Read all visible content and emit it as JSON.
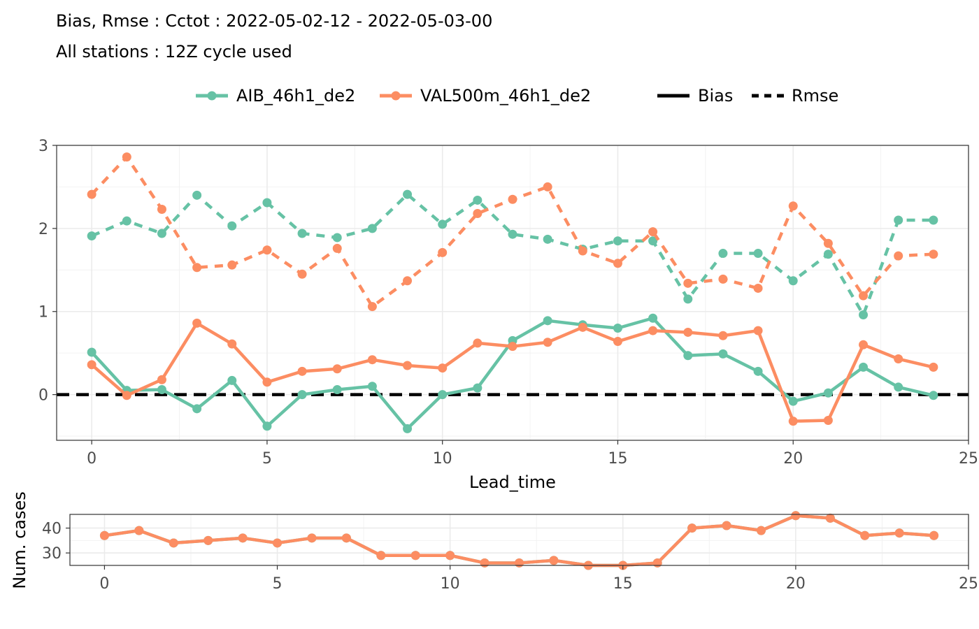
{
  "title": "Bias, Rmse : Cctot : 2022-05-02-12 - 2022-05-03-00",
  "subtitle": "All stations : 12Z cycle used",
  "colors": {
    "AIB_46h1_de2": "#66c2a5",
    "VAL500m_46h1_de2": "#fc8d62",
    "zero_line": "#000000"
  },
  "legend": {
    "placement": "top",
    "models": [
      "AIB_46h1_de2",
      "VAL500m_46h1_de2"
    ],
    "linetypes": [
      "Bias",
      "Rmse"
    ]
  },
  "chart_data": [
    {
      "type": "line",
      "xlabel": "Lead_time",
      "ylabel": "",
      "xlim": [
        -1,
        25
      ],
      "ylim": [
        -0.55,
        3
      ],
      "xticks": [
        0,
        5,
        10,
        15,
        20,
        25
      ],
      "yticks": [
        0,
        1,
        2,
        3
      ],
      "grid": true,
      "x": [
        0,
        1,
        2,
        3,
        4,
        5,
        6,
        7,
        8,
        9,
        10,
        11,
        12,
        13,
        14,
        15,
        16,
        17,
        18,
        19,
        20,
        21,
        22,
        23,
        24
      ],
      "series": [
        {
          "name": "AIB_46h1_de2",
          "metric": "Bias",
          "linetype": "solid",
          "values": [
            0.51,
            0.05,
            0.06,
            -0.17,
            0.17,
            -0.38,
            0.0,
            0.06,
            0.1,
            -0.41,
            0.0,
            0.08,
            0.65,
            0.89,
            0.84,
            0.8,
            0.92,
            0.47,
            0.49,
            0.28,
            -0.08,
            0.02,
            0.33,
            0.09,
            -0.01
          ]
        },
        {
          "name": "VAL500m_46h1_de2",
          "metric": "Bias",
          "linetype": "solid",
          "values": [
            0.36,
            -0.01,
            0.18,
            0.86,
            0.61,
            0.15,
            0.28,
            0.31,
            0.42,
            0.35,
            0.32,
            0.62,
            0.58,
            0.63,
            0.81,
            0.64,
            0.77,
            0.75,
            0.71,
            0.77,
            -0.32,
            -0.31,
            0.6,
            0.43,
            0.33
          ]
        },
        {
          "name": "AIB_46h1_de2",
          "metric": "Rmse",
          "linetype": "dashed",
          "values": [
            1.91,
            2.09,
            1.94,
            2.4,
            2.03,
            2.31,
            1.94,
            1.89,
            2.0,
            2.41,
            2.05,
            2.34,
            1.93,
            1.87,
            1.75,
            1.85,
            1.85,
            1.15,
            1.7,
            1.7,
            1.37,
            1.69,
            0.96,
            2.1,
            2.1
          ]
        },
        {
          "name": "VAL500m_46h1_de2",
          "metric": "Rmse",
          "linetype": "dashed",
          "values": [
            2.41,
            2.86,
            2.23,
            1.53,
            1.56,
            1.74,
            1.45,
            1.76,
            1.06,
            1.37,
            1.71,
            2.18,
            2.35,
            2.5,
            1.73,
            1.58,
            1.96,
            1.34,
            1.39,
            1.28,
            2.27,
            1.82,
            1.19,
            1.67,
            1.69
          ]
        }
      ]
    },
    {
      "type": "line",
      "xlabel": "",
      "ylabel": "Num. cases",
      "xlim": [
        -1,
        25
      ],
      "ylim": [
        25,
        45.5
      ],
      "xticks": [
        0,
        5,
        10,
        15,
        20,
        25
      ],
      "yticks": [
        30,
        40
      ],
      "grid": true,
      "x": [
        0,
        1,
        2,
        3,
        4,
        5,
        6,
        7,
        8,
        9,
        10,
        11,
        12,
        13,
        14,
        15,
        16,
        17,
        18,
        19,
        20,
        21,
        22,
        23,
        24
      ],
      "series": [
        {
          "name": "AIB_46h1_de2",
          "values": [
            37,
            39,
            34,
            35,
            36,
            34,
            36,
            36,
            29,
            29,
            29,
            26,
            26,
            27,
            25,
            25,
            26,
            40,
            41,
            39,
            45,
            44,
            37,
            38,
            37
          ]
        },
        {
          "name": "VAL500m_46h1_de2",
          "values": [
            37,
            39,
            34,
            35,
            36,
            34,
            36,
            36,
            29,
            29,
            29,
            26,
            26,
            27,
            25,
            25,
            26,
            40,
            41,
            39,
            45,
            44,
            37,
            38,
            37
          ]
        }
      ]
    }
  ]
}
